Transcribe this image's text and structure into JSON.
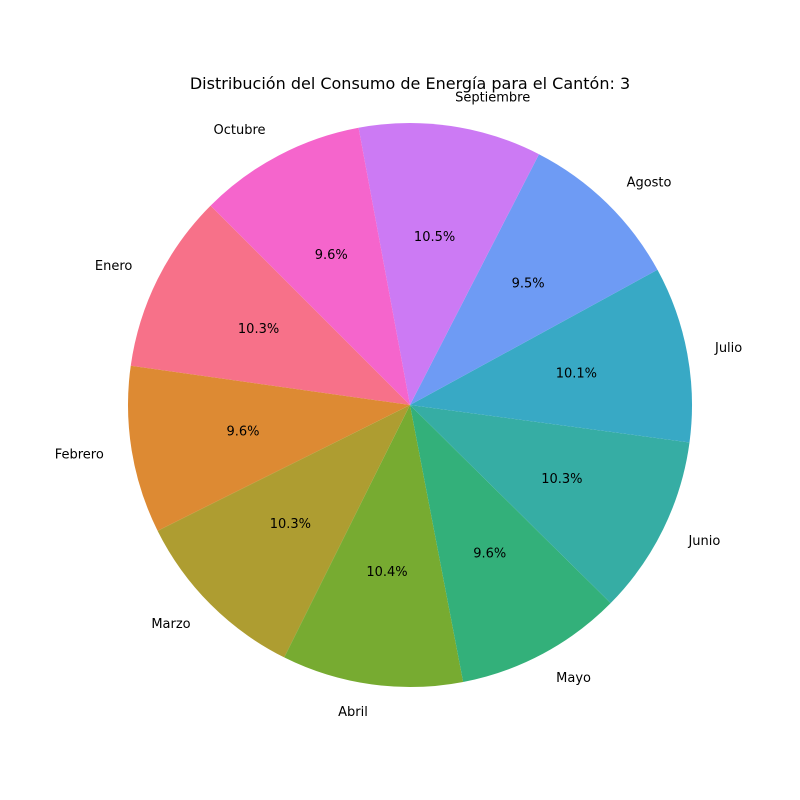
{
  "chart_data": {
    "type": "pie",
    "title": "Distribución del Consumo de Energía para el Cantón: 3",
    "start_angle_deg": 135,
    "direction": "counterclockwise",
    "slices": [
      {
        "label": "Enero",
        "percent": 10.3,
        "percent_label": "10.3%",
        "color": "#f77189"
      },
      {
        "label": "Febrero",
        "percent": 9.6,
        "percent_label": "9.6%",
        "color": "#dd8a33"
      },
      {
        "label": "Marzo",
        "percent": 10.3,
        "percent_label": "10.3%",
        "color": "#ae9d31"
      },
      {
        "label": "Abril",
        "percent": 10.4,
        "percent_label": "10.4%",
        "color": "#77ab31"
      },
      {
        "label": "Mayo",
        "percent": 9.6,
        "percent_label": "9.6%",
        "color": "#33b07a"
      },
      {
        "label": "Junio",
        "percent": 10.3,
        "percent_label": "10.3%",
        "color": "#36ada4"
      },
      {
        "label": "Julio",
        "percent": 10.1,
        "percent_label": "10.1%",
        "color": "#38a9c5"
      },
      {
        "label": "Agosto",
        "percent": 9.5,
        "percent_label": "9.5%",
        "color": "#6e9bf4"
      },
      {
        "label": "Septiembre",
        "percent": 10.5,
        "percent_label": "10.5%",
        "color": "#cc7af4"
      },
      {
        "label": "Octubre",
        "percent": 9.6,
        "percent_label": "9.6%",
        "color": "#f565cc"
      }
    ]
  }
}
